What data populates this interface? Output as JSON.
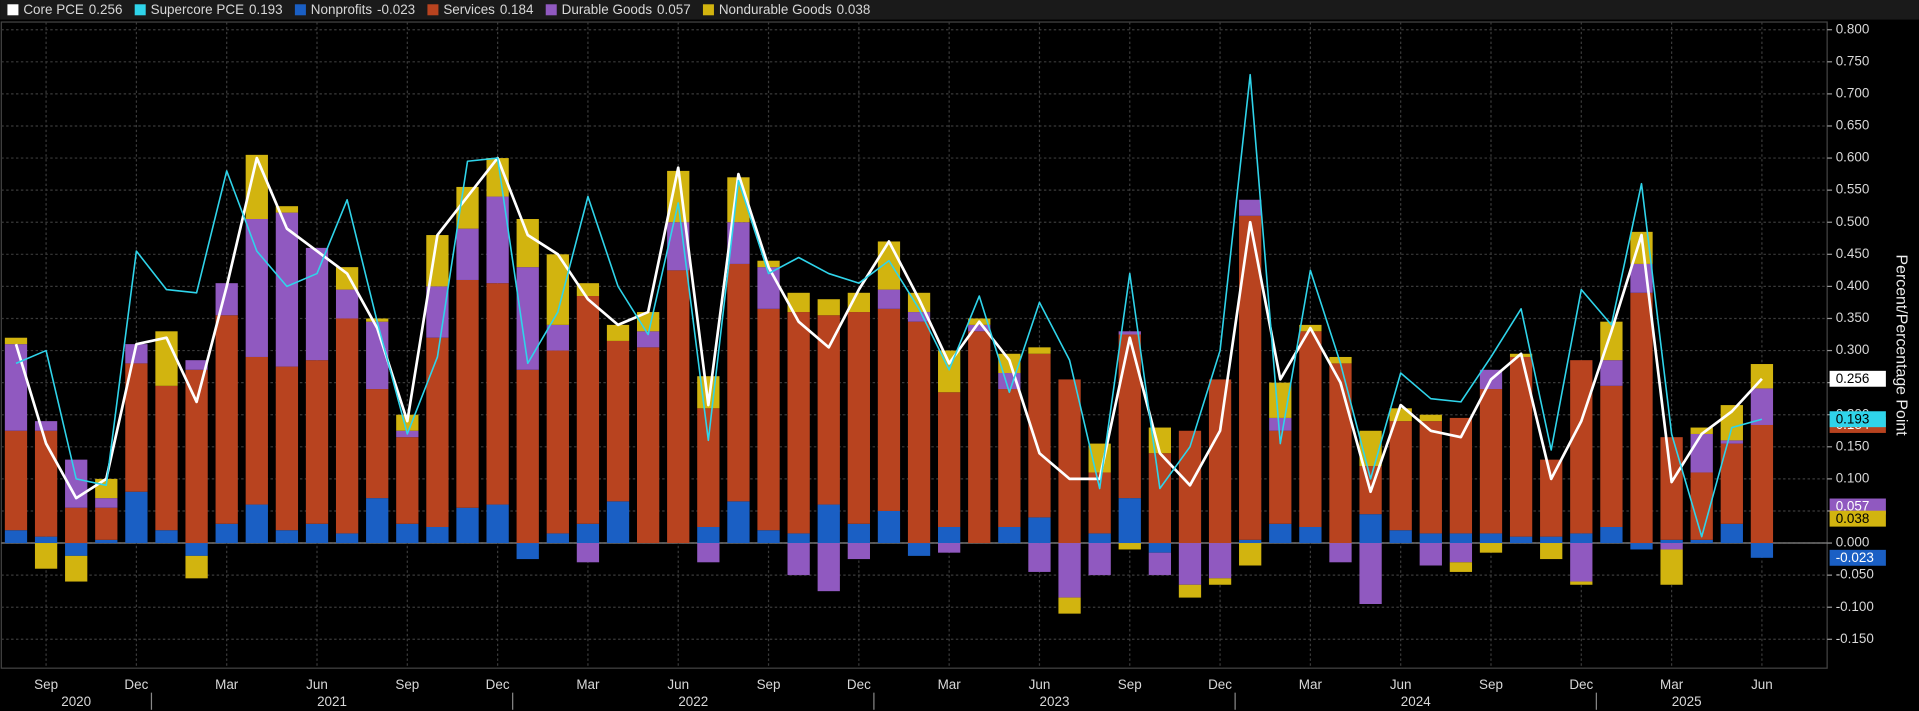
{
  "chart_data": {
    "type": "bar",
    "y_label": "Percent/Percentage Point",
    "categories": [
      null,
      "Sep",
      null,
      null,
      "Dec",
      null,
      null,
      "Mar",
      null,
      null,
      "Jun",
      null,
      null,
      "Sep",
      null,
      null,
      "Dec",
      null,
      null,
      "Mar",
      null,
      null,
      "Jun",
      null,
      null,
      "Sep",
      null,
      null,
      "Dec",
      null,
      null,
      "Mar",
      null,
      null,
      "Jun",
      null,
      null,
      "Sep",
      null,
      null,
      "Dec",
      null,
      null,
      "Mar",
      null,
      null,
      "Jun",
      null,
      null,
      "Sep",
      null,
      null,
      "Dec",
      null,
      null,
      "Mar",
      null,
      null,
      "Jun"
    ],
    "years": [
      "2020",
      "2021",
      "2022",
      "2023",
      "2024",
      "2025"
    ],
    "ylim": [
      -0.195,
      0.812
    ],
    "yticks": [
      {
        "value": -0.15,
        "label": "-0.150"
      },
      {
        "value": -0.1,
        "label": "-0.100"
      },
      {
        "value": -0.05,
        "label": "-0.050"
      },
      {
        "value": 0,
        "label": "0.000"
      },
      {
        "value": 0.05,
        "label": "0.050"
      },
      {
        "value": 0.1,
        "label": "0.100"
      },
      {
        "value": 0.15,
        "label": "0.150"
      },
      {
        "value": 0.2,
        "label": "0.200"
      },
      {
        "value": 0.25,
        "label": "0.250"
      },
      {
        "value": 0.3,
        "label": "0.300"
      },
      {
        "value": 0.35,
        "label": "0.350"
      },
      {
        "value": 0.4,
        "label": "0.400"
      },
      {
        "value": 0.45,
        "label": "0.450"
      },
      {
        "value": 0.5,
        "label": "0.500"
      },
      {
        "value": 0.55,
        "label": "0.550"
      },
      {
        "value": 0.6,
        "label": "0.600"
      },
      {
        "value": 0.65,
        "label": "0.650"
      },
      {
        "value": 0.7,
        "label": "0.700"
      },
      {
        "value": 0.75,
        "label": "0.750"
      },
      {
        "value": 0.8,
        "label": "0.800"
      }
    ],
    "grid": true,
    "series": [
      {
        "name": "Core PCE",
        "color": "#ffffff",
        "type": "line",
        "values": [
          0.31,
          0.155,
          0.07,
          0.1,
          0.31,
          0.32,
          0.22,
          0.4,
          0.6,
          0.49,
          0.455,
          0.42,
          0.335,
          0.19,
          0.48,
          0.54,
          0.6,
          0.48,
          0.45,
          0.38,
          0.34,
          0.36,
          0.585,
          0.215,
          0.575,
          0.43,
          0.345,
          0.305,
          0.395,
          0.47,
          0.38,
          0.28,
          0.345,
          0.285,
          0.14,
          0.1,
          0.1,
          0.32,
          0.14,
          0.09,
          0.175,
          0.5,
          0.255,
          0.335,
          0.25,
          0.08,
          0.215,
          0.175,
          0.165,
          0.255,
          0.295,
          0.1,
          0.19,
          0.33,
          0.48,
          0.095,
          0.17,
          0.205,
          0.256
        ]
      },
      {
        "name": "Supercore PCE",
        "color": "#2fd4ea",
        "type": "line",
        "values": [
          0.28,
          0.3,
          0.1,
          0.09,
          0.455,
          0.395,
          0.39,
          0.58,
          0.455,
          0.4,
          0.42,
          0.535,
          0.345,
          0.17,
          0.29,
          0.595,
          0.6,
          0.28,
          0.36,
          0.54,
          0.4,
          0.325,
          0.53,
          0.16,
          0.565,
          0.42,
          0.445,
          0.42,
          0.405,
          0.44,
          0.365,
          0.27,
          0.385,
          0.235,
          0.375,
          0.285,
          0.085,
          0.42,
          0.085,
          0.15,
          0.3,
          0.73,
          0.155,
          0.425,
          0.28,
          0.1,
          0.265,
          0.225,
          0.22,
          0.29,
          0.365,
          0.145,
          0.395,
          0.34,
          0.56,
          0.17,
          0.01,
          0.18,
          0.193
        ]
      },
      {
        "name": "Nonprofits",
        "color": "#1a5fc4",
        "type": "bar",
        "values": [
          0.02,
          0.01,
          -0.02,
          0.005,
          0.08,
          0.02,
          -0.02,
          0.03,
          0.06,
          0.02,
          0.03,
          0.015,
          0.07,
          0.03,
          0.025,
          0.055,
          0.06,
          -0.025,
          0.015,
          0.03,
          0.065,
          0,
          0,
          0.025,
          0.065,
          0.02,
          0.015,
          0.06,
          0.03,
          0.05,
          -0.02,
          0.025,
          0,
          0.025,
          0.04,
          0,
          0.015,
          0.07,
          -0.015,
          0,
          0,
          0.005,
          0.03,
          0.025,
          0,
          0.045,
          0.02,
          0.015,
          0.015,
          0.015,
          0.01,
          0.01,
          0.015,
          0.025,
          -0.01,
          0.005,
          0.005,
          0.03,
          -0.023
        ]
      },
      {
        "name": "Services",
        "color": "#b8431f",
        "type": "bar",
        "values": [
          0.155,
          0.165,
          0.055,
          0.05,
          0.2,
          0.225,
          0.27,
          0.325,
          0.23,
          0.255,
          0.255,
          0.335,
          0.17,
          0.135,
          0.295,
          0.355,
          0.345,
          0.27,
          0.285,
          0.355,
          0.25,
          0.305,
          0.425,
          0.185,
          0.37,
          0.345,
          0.345,
          0.295,
          0.33,
          0.315,
          0.345,
          0.21,
          0.33,
          0.215,
          0.255,
          0.255,
          0.095,
          0.255,
          0.14,
          0.175,
          0.255,
          0.505,
          0.145,
          0.305,
          0.28,
          0.075,
          0.17,
          0.175,
          0.18,
          0.225,
          0.28,
          0.12,
          0.27,
          0.22,
          0.39,
          0.16,
          0.105,
          0.125,
          0.184
        ]
      },
      {
        "name": "Durable Goods",
        "color": "#9059c0",
        "type": "bar",
        "values": [
          0.135,
          0.015,
          0.075,
          0.015,
          0.03,
          0,
          0.015,
          0.05,
          0.215,
          0.24,
          0.175,
          0.045,
          0.105,
          0.01,
          0.08,
          0.08,
          0.135,
          0.16,
          0.04,
          -0.03,
          0,
          0.025,
          0.075,
          -0.03,
          0.065,
          0.065,
          -0.05,
          -0.075,
          -0.025,
          0.03,
          0.015,
          -0.015,
          0.01,
          0.025,
          -0.045,
          -0.085,
          -0.05,
          0.005,
          -0.035,
          -0.065,
          -0.055,
          0.025,
          0.02,
          0,
          -0.03,
          -0.095,
          0,
          -0.035,
          -0.03,
          0.03,
          0,
          0,
          -0.06,
          0.04,
          0.045,
          -0.01,
          0.06,
          0.005,
          0.057
        ]
      },
      {
        "name": "Nondurable Goods",
        "color": "#d2b40f",
        "type": "bar",
        "values": [
          0.01,
          -0.04,
          -0.04,
          0.03,
          0,
          0.085,
          -0.035,
          0,
          0.1,
          0.01,
          0,
          0.035,
          0.005,
          0.025,
          0.08,
          0.065,
          0.06,
          0.075,
          0.11,
          0.02,
          0.025,
          0.03,
          0.08,
          0.05,
          0.07,
          0.01,
          0.03,
          0.025,
          0.03,
          0.075,
          0.03,
          0.065,
          0.01,
          0.03,
          0.01,
          -0.025,
          0.045,
          -0.01,
          0.04,
          -0.02,
          -0.01,
          -0.035,
          0.055,
          0.01,
          0.01,
          0.055,
          0.02,
          0.01,
          -0.015,
          -0.015,
          0.005,
          -0.025,
          -0.005,
          0.06,
          0.05,
          -0.055,
          0.01,
          0.055,
          0.038
        ]
      }
    ]
  }
}
